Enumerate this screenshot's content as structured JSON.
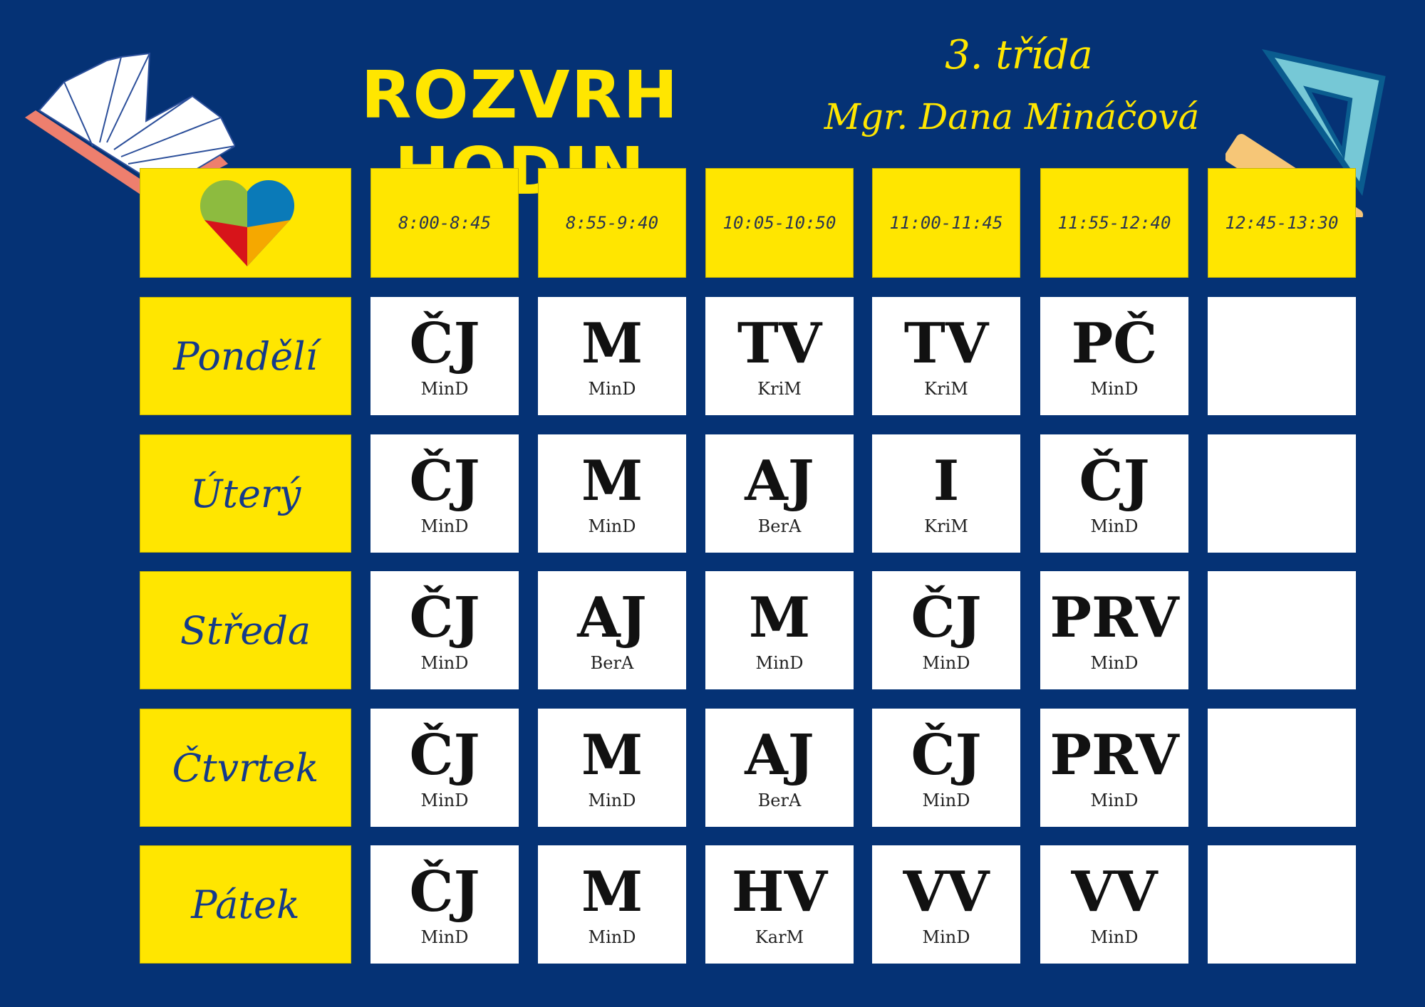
{
  "header": {
    "title": "ROZVRH HODIN",
    "class_name": "3. třída",
    "teacher": "Mgr. Dana Mináčová"
  },
  "times": [
    "8:00-8:45",
    "8:55-9:40",
    "10:05-10:50",
    "11:00-11:45",
    "11:55-12:40",
    "12:45-13:30"
  ],
  "days": [
    {
      "name": "Pondělí",
      "lessons": [
        {
          "s": "ČJ",
          "t": "MinD"
        },
        {
          "s": "M",
          "t": "MinD"
        },
        {
          "s": "TV",
          "t": "KriM"
        },
        {
          "s": "TV",
          "t": "KriM"
        },
        {
          "s": "PČ",
          "t": "MinD"
        },
        {
          "s": "",
          "t": ""
        }
      ]
    },
    {
      "name": "Úterý",
      "lessons": [
        {
          "s": "ČJ",
          "t": "MinD"
        },
        {
          "s": "M",
          "t": "MinD"
        },
        {
          "s": "AJ",
          "t": "BerA"
        },
        {
          "s": "I",
          "t": "KriM"
        },
        {
          "s": "ČJ",
          "t": "MinD"
        },
        {
          "s": "",
          "t": ""
        }
      ]
    },
    {
      "name": "Středa",
      "lessons": [
        {
          "s": "ČJ",
          "t": "MinD"
        },
        {
          "s": "AJ",
          "t": "BerA"
        },
        {
          "s": "M",
          "t": "MinD"
        },
        {
          "s": "ČJ",
          "t": "MinD"
        },
        {
          "s": "PRV",
          "t": "MinD"
        },
        {
          "s": "",
          "t": ""
        }
      ]
    },
    {
      "name": "Čtvrtek",
      "lessons": [
        {
          "s": "ČJ",
          "t": "MinD"
        },
        {
          "s": "M",
          "t": "MinD"
        },
        {
          "s": "AJ",
          "t": "BerA"
        },
        {
          "s": "ČJ",
          "t": "MinD"
        },
        {
          "s": "PRV",
          "t": "MinD"
        },
        {
          "s": "",
          "t": ""
        }
      ]
    },
    {
      "name": "Pátek",
      "lessons": [
        {
          "s": "ČJ",
          "t": "MinD"
        },
        {
          "s": "M",
          "t": "MinD"
        },
        {
          "s": "HV",
          "t": "KarM"
        },
        {
          "s": "VV",
          "t": "MinD"
        },
        {
          "s": "VV",
          "t": "MinD"
        },
        {
          "s": "",
          "t": ""
        }
      ]
    }
  ],
  "colors": {
    "background": "#053275",
    "yellow": "#ffe600",
    "white": "#ffffff"
  },
  "icons": [
    "open-book-icon",
    "school-heart-logo",
    "ruler-triangle-icon"
  ]
}
